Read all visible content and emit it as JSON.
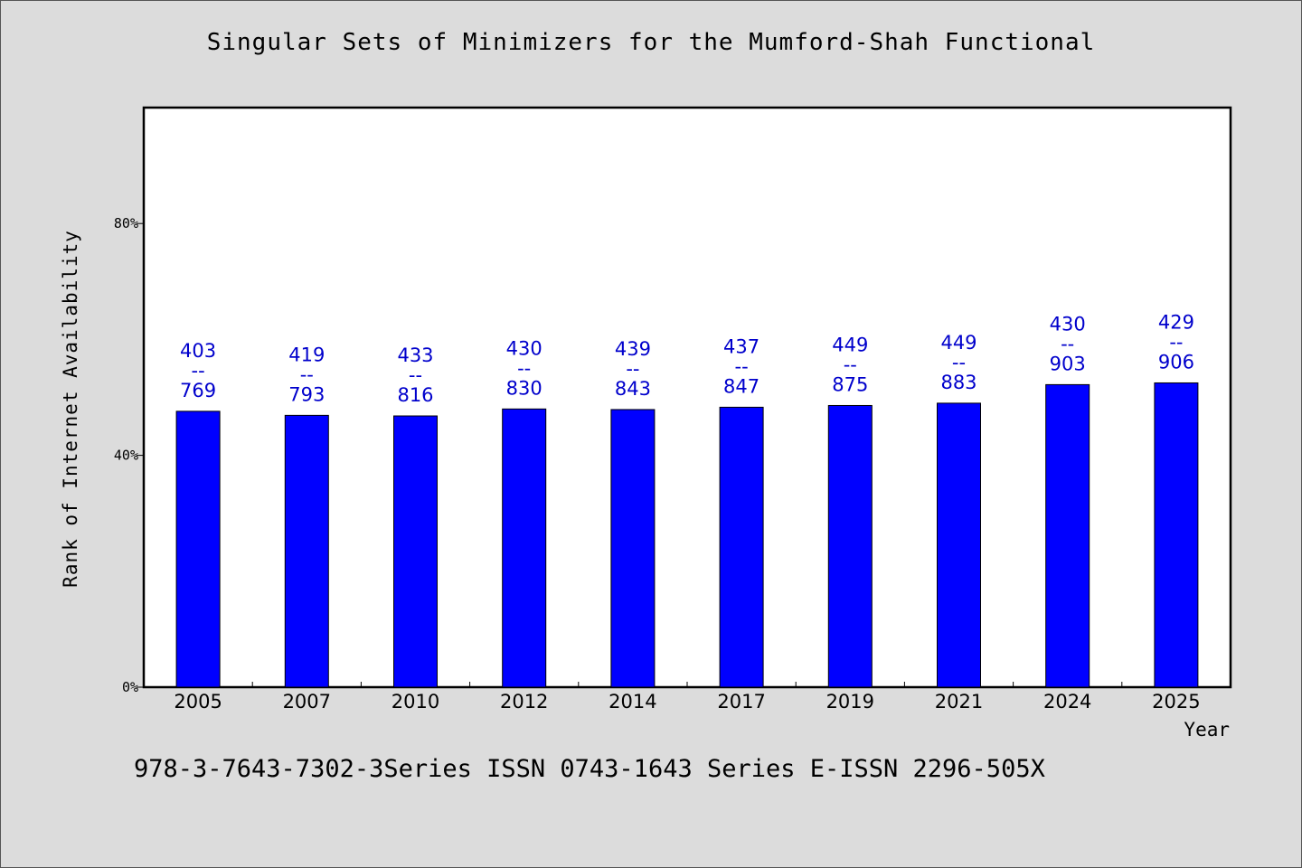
{
  "chart_data": {
    "type": "bar",
    "title": "Singular Sets of Minimizers for the Mumford-Shah Functional",
    "xlabel": "Year",
    "ylabel": "Rank of Internet Availability",
    "categories": [
      "2005",
      "2007",
      "2010",
      "2012",
      "2014",
      "2017",
      "2019",
      "2021",
      "2024",
      "2025"
    ],
    "values": [
      47.6,
      46.9,
      46.8,
      48.0,
      47.9,
      48.3,
      48.6,
      49.0,
      52.2,
      52.5
    ],
    "value_unit": "%",
    "bar_labels": [
      {
        "top": "403",
        "sep": "--",
        "bottom": "769"
      },
      {
        "top": "419",
        "sep": "--",
        "bottom": "793"
      },
      {
        "top": "433",
        "sep": "--",
        "bottom": "816"
      },
      {
        "top": "430",
        "sep": "--",
        "bottom": "830"
      },
      {
        "top": "439",
        "sep": "--",
        "bottom": "843"
      },
      {
        "top": "437",
        "sep": "--",
        "bottom": "847"
      },
      {
        "top": "449",
        "sep": "--",
        "bottom": "875"
      },
      {
        "top": "449",
        "sep": "--",
        "bottom": "883"
      },
      {
        "top": "430",
        "sep": "--",
        "bottom": "903"
      },
      {
        "top": "429",
        "sep": "--",
        "bottom": "906"
      }
    ],
    "yticks": [
      0,
      40,
      80
    ],
    "ytick_labels": [
      "0%",
      "40%",
      "80%"
    ],
    "ylim": [
      0,
      100
    ],
    "grid": false,
    "bar_color": "#0000ff",
    "label_color": "#0000cc",
    "background": "#dcdcdc",
    "plot_background": "#ffffff"
  },
  "footer_text": "978-3-7643-7302-3Series ISSN 0743-1643 Series E-ISSN 2296-505X"
}
